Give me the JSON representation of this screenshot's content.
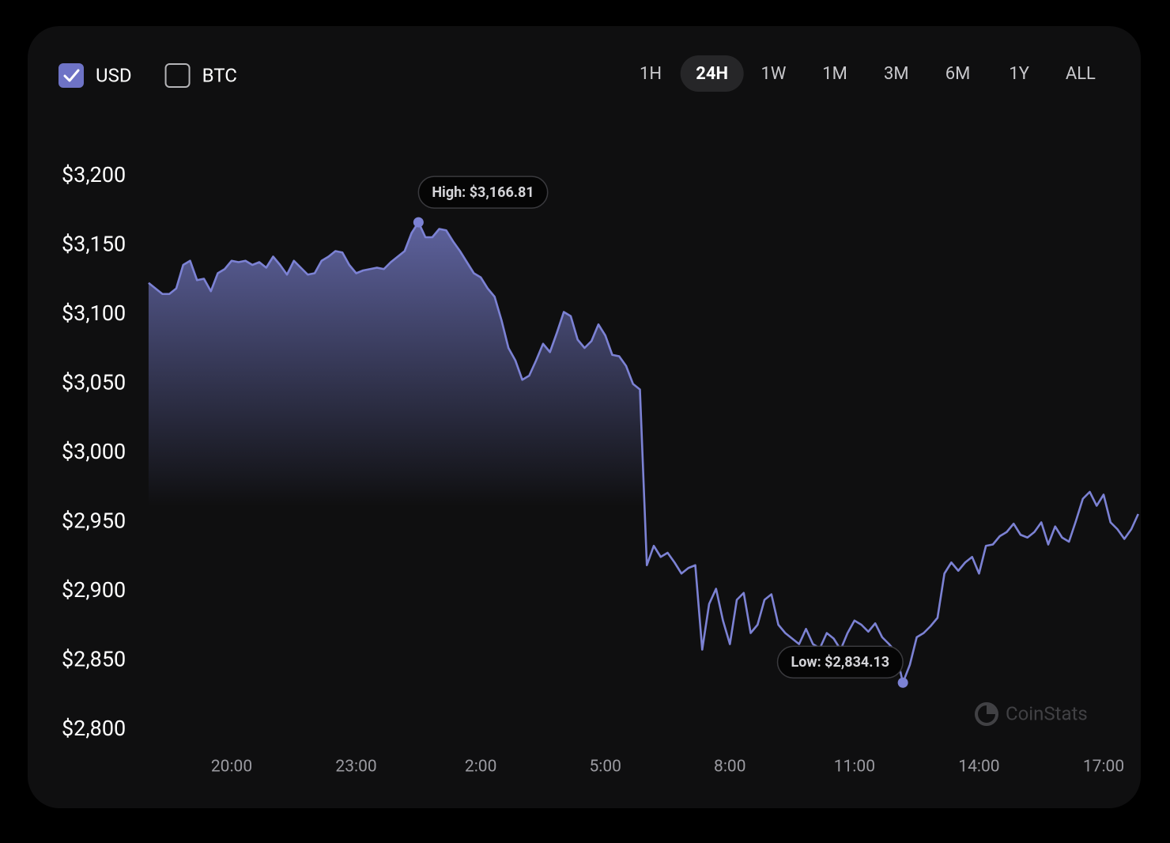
{
  "controls": {
    "currency": [
      {
        "label": "USD",
        "checked": true
      },
      {
        "label": "BTC",
        "checked": false
      }
    ],
    "ranges": [
      "1H",
      "24H",
      "1W",
      "1M",
      "3M",
      "6M",
      "1Y",
      "ALL"
    ],
    "selected": "24H",
    "watermark": "CoinStats"
  },
  "chart_data": {
    "type": "area",
    "color": "#7c82d4",
    "high_label": "High: $3,166.81",
    "low_label": "Low: $2,834.13",
    "categories": [
      null,
      null,
      null,
      null,
      null,
      null,
      null,
      null,
      null,
      null,
      null,
      null,
      "20:00",
      null,
      null,
      null,
      null,
      null,
      null,
      null,
      null,
      null,
      null,
      null,
      null,
      null,
      null,
      null,
      null,
      null,
      "23:00",
      null,
      null,
      null,
      null,
      null,
      null,
      null,
      null,
      null,
      null,
      null,
      null,
      null,
      null,
      null,
      null,
      null,
      "2:00",
      null,
      null,
      null,
      null,
      null,
      null,
      null,
      null,
      null,
      null,
      null,
      null,
      null,
      null,
      null,
      null,
      null,
      "5:00",
      null,
      null,
      null,
      null,
      null,
      null,
      null,
      null,
      null,
      null,
      null,
      null,
      null,
      null,
      null,
      null,
      null,
      "8:00",
      null,
      null,
      null,
      null,
      null,
      null,
      null,
      null,
      null,
      null,
      null,
      null,
      null,
      null,
      null,
      null,
      null,
      "11:00",
      null,
      null,
      null,
      null,
      null,
      null,
      null,
      null,
      null,
      null,
      null,
      null,
      null,
      null,
      null,
      null,
      null,
      "14:00",
      null,
      null,
      null,
      null,
      null,
      null,
      null,
      null,
      null,
      null,
      null,
      null,
      null,
      null,
      null,
      null,
      null,
      "17:00",
      null,
      null,
      null,
      null,
      null
    ],
    "values": [
      3123,
      3119,
      3115,
      3115,
      3119,
      3136,
      3139,
      3125,
      3126,
      3117,
      3130,
      3133,
      3139,
      3138,
      3139,
      3136,
      3138,
      3134,
      3142,
      3136,
      3129,
      3139,
      3134,
      3129,
      3130,
      3139,
      3142,
      3146,
      3145,
      3136,
      3130,
      3132,
      3133,
      3134,
      3133,
      3138,
      3142,
      3146,
      3159,
      3166.81,
      3156,
      3156,
      3162,
      3161,
      3153,
      3146,
      3138,
      3130,
      3127,
      3119,
      3113,
      3096,
      3076,
      3067,
      3053,
      3056,
      3067,
      3079,
      3073,
      3087,
      3102,
      3099,
      3082,
      3076,
      3081,
      3093,
      3085,
      3071,
      3070,
      3063,
      3050,
      3046,
      2919,
      2933,
      2925,
      2928,
      2921,
      2913,
      2917,
      2919,
      2858,
      2891,
      2902,
      2879,
      2862,
      2894,
      2899,
      2870,
      2876,
      2894,
      2898,
      2876,
      2870,
      2866,
      2862,
      2873,
      2862,
      2859,
      2870,
      2866,
      2858,
      2870,
      2879,
      2876,
      2871,
      2877,
      2867,
      2862,
      2856,
      2834.13,
      2847,
      2867,
      2870,
      2875,
      2881,
      2913,
      2921,
      2915,
      2921,
      2925,
      2913,
      2933,
      2934,
      2940,
      2943,
      2949,
      2941,
      2939,
      2943,
      2950,
      2934,
      2947,
      2939,
      2936,
      2951,
      2967,
      2972,
      2962,
      2970,
      2950,
      2945,
      2938,
      2945,
      2956
    ],
    "ylim": [
      2800,
      3200
    ],
    "yticks": [
      {
        "value": 2800,
        "label": "$2,800"
      },
      {
        "value": 2850,
        "label": "$2,850"
      },
      {
        "value": 2900,
        "label": "$2,900"
      },
      {
        "value": 2950,
        "label": "$2,950"
      },
      {
        "value": 3000,
        "label": "$3,000"
      },
      {
        "value": 3050,
        "label": "$3,050"
      },
      {
        "value": 3100,
        "label": "$3,100"
      },
      {
        "value": 3150,
        "label": "$3,150"
      },
      {
        "value": 3200,
        "label": "$3,200"
      }
    ]
  }
}
